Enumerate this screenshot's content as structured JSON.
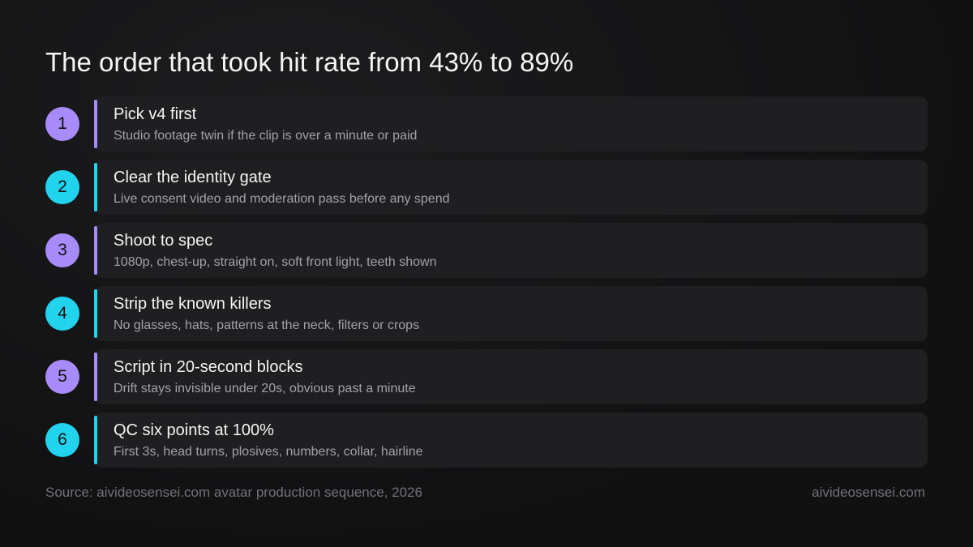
{
  "title": "The order that took hit rate from 43% to 89%",
  "steps": [
    {
      "number": "1",
      "title": "Pick v4 first",
      "detail": "Studio footage twin if the clip is over a minute or paid",
      "color": "#a78bfa"
    },
    {
      "number": "2",
      "title": "Clear the identity gate",
      "detail": "Live consent video and moderation pass before any spend",
      "color": "#22d3ee"
    },
    {
      "number": "3",
      "title": "Shoot to spec",
      "detail": "1080p, chest-up, straight on, soft front light, teeth shown",
      "color": "#a78bfa"
    },
    {
      "number": "4",
      "title": "Strip the known killers",
      "detail": "No glasses, hats, patterns at the neck, filters or crops",
      "color": "#22d3ee"
    },
    {
      "number": "5",
      "title": "Script in 20-second blocks",
      "detail": "Drift stays invisible under 20s, obvious past a minute",
      "color": "#a78bfa"
    },
    {
      "number": "6",
      "title": "QC six points at 100%",
      "detail": "First 3s, head turns, plosives, numbers, collar, hairline",
      "color": "#22d3ee"
    }
  ],
  "footer": {
    "source": "Source: aivideosensei.com avatar production sequence, 2026",
    "brand": "aivideosensei.com"
  }
}
